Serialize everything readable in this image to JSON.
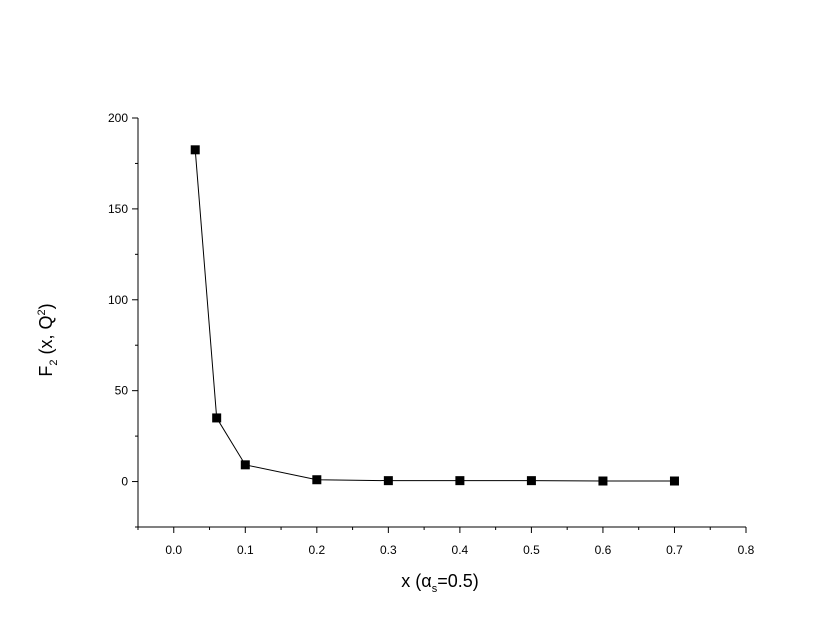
{
  "chart_data": {
    "type": "line",
    "xlabel": [
      "x  (α",
      "s",
      "=0.5)"
    ],
    "ylabel": [
      "F",
      "2",
      " (x, Q",
      "2",
      ")"
    ],
    "x": [
      0.03,
      0.06,
      0.1,
      0.2,
      0.3,
      0.4,
      0.5,
      0.6,
      0.7
    ],
    "series": [
      {
        "color": "#000000",
        "values": [
          182.5,
          35,
          9.2,
          1,
          0.5,
          0.5,
          0.5,
          0.3,
          0.3
        ]
      }
    ],
    "xlim": [
      -0.05,
      0.8
    ],
    "xticks": [
      {
        "value": 0,
        "label": "0.0"
      },
      0.1,
      0.2,
      0.3,
      0.4,
      0.5,
      0.6,
      0.7,
      0.8
    ],
    "xminorticks": [
      -0.05,
      0.05,
      0.15,
      0.25,
      0.35,
      0.45,
      0.55,
      0.65,
      0.75
    ],
    "ylim": [
      -25,
      200
    ],
    "yticks": [
      0,
      50,
      100,
      150,
      200
    ],
    "yminorticks": [
      -25,
      25,
      75,
      125,
      175
    ],
    "marker": "square"
  }
}
